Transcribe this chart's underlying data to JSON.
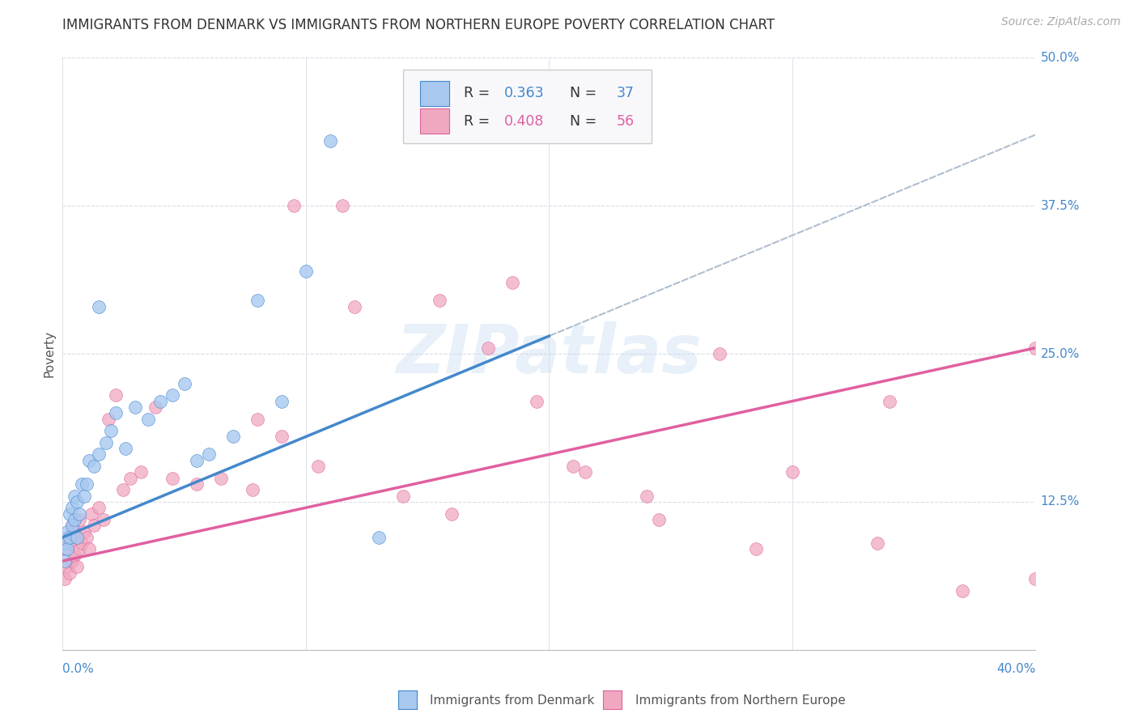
{
  "title": "IMMIGRANTS FROM DENMARK VS IMMIGRANTS FROM NORTHERN EUROPE POVERTY CORRELATION CHART",
  "source": "Source: ZipAtlas.com",
  "ylabel": "Poverty",
  "R1": 0.363,
  "N1": 37,
  "R2": 0.408,
  "N2": 56,
  "color_denmark": "#a8c8f0",
  "color_northern": "#f0a8c0",
  "color_denmark_line": "#4488cc",
  "color_northern_line": "#e060a0",
  "color_dashed": "#b0bece",
  "legend1_label": "Immigrants from Denmark",
  "legend2_label": "Immigrants from Northern Europe",
  "xlim": [
    0.0,
    0.4
  ],
  "ylim": [
    0.0,
    0.5
  ],
  "blue_line_x0": 0.0,
  "blue_line_y0": 0.095,
  "blue_line_x1": 0.2,
  "blue_line_y1": 0.265,
  "pink_line_x0": 0.0,
  "pink_line_y0": 0.075,
  "pink_line_x1": 0.4,
  "pink_line_y1": 0.255,
  "denmark_x": [
    0.001,
    0.001,
    0.002,
    0.002,
    0.003,
    0.003,
    0.004,
    0.004,
    0.005,
    0.005,
    0.006,
    0.006,
    0.007,
    0.008,
    0.009,
    0.01,
    0.011,
    0.013,
    0.015,
    0.018,
    0.02,
    0.022,
    0.026,
    0.03,
    0.035,
    0.04,
    0.045,
    0.05,
    0.055,
    0.06,
    0.07,
    0.08,
    0.09,
    0.1,
    0.11,
    0.13,
    0.015
  ],
  "denmark_y": [
    0.075,
    0.09,
    0.085,
    0.1,
    0.095,
    0.115,
    0.105,
    0.12,
    0.11,
    0.13,
    0.095,
    0.125,
    0.115,
    0.14,
    0.13,
    0.14,
    0.16,
    0.155,
    0.165,
    0.175,
    0.185,
    0.2,
    0.17,
    0.205,
    0.195,
    0.21,
    0.215,
    0.225,
    0.16,
    0.165,
    0.18,
    0.295,
    0.21,
    0.32,
    0.43,
    0.095,
    0.29
  ],
  "northern_x": [
    0.001,
    0.001,
    0.002,
    0.002,
    0.003,
    0.003,
    0.004,
    0.004,
    0.005,
    0.005,
    0.006,
    0.006,
    0.007,
    0.007,
    0.008,
    0.009,
    0.01,
    0.011,
    0.012,
    0.013,
    0.015,
    0.017,
    0.019,
    0.022,
    0.025,
    0.028,
    0.032,
    0.038,
    0.045,
    0.055,
    0.065,
    0.078,
    0.09,
    0.105,
    0.12,
    0.14,
    0.16,
    0.185,
    0.21,
    0.24,
    0.27,
    0.3,
    0.335,
    0.37,
    0.4,
    0.4,
    0.175,
    0.195,
    0.215,
    0.285,
    0.08,
    0.095,
    0.115,
    0.155,
    0.245,
    0.34
  ],
  "northern_y": [
    0.06,
    0.085,
    0.07,
    0.095,
    0.065,
    0.09,
    0.075,
    0.105,
    0.08,
    0.1,
    0.07,
    0.095,
    0.085,
    0.11,
    0.09,
    0.1,
    0.095,
    0.085,
    0.115,
    0.105,
    0.12,
    0.11,
    0.195,
    0.215,
    0.135,
    0.145,
    0.15,
    0.205,
    0.145,
    0.14,
    0.145,
    0.135,
    0.18,
    0.155,
    0.29,
    0.13,
    0.115,
    0.31,
    0.155,
    0.13,
    0.25,
    0.15,
    0.09,
    0.05,
    0.06,
    0.255,
    0.255,
    0.21,
    0.15,
    0.085,
    0.195,
    0.375,
    0.375,
    0.295,
    0.11,
    0.21
  ],
  "background_color": "#ffffff",
  "grid_color": "#d8dde8"
}
